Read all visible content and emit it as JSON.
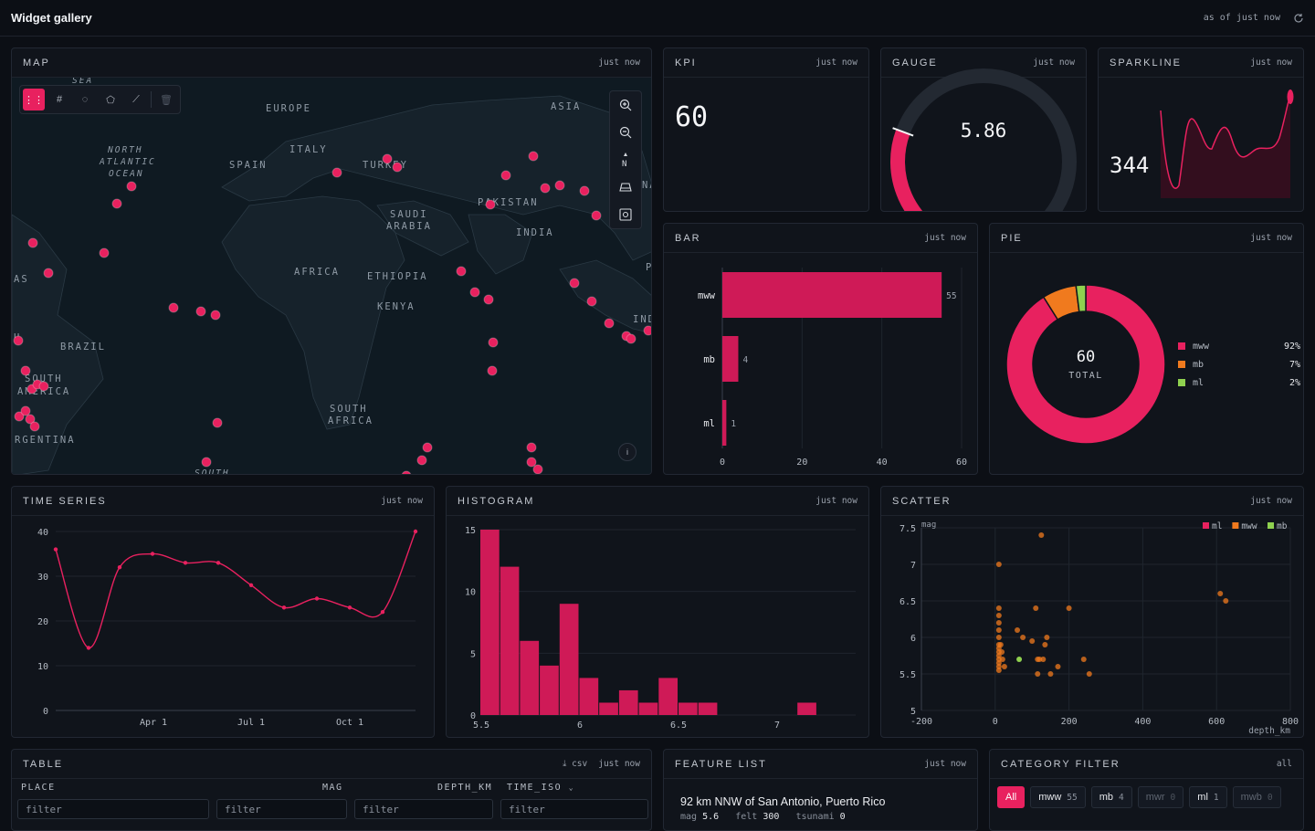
{
  "app": {
    "title": "Widget gallery",
    "status": "as of just now"
  },
  "panels": {
    "map": {
      "title": "MAP",
      "meta": "just now",
      "labels": [
        "SEA",
        "EUROPE",
        "ASIA",
        "NORTH",
        "ATLANTIC",
        "OCEAN",
        "ITALY",
        "SPAIN",
        "TURKEY",
        "SAUDI",
        "ARABIA",
        "PAKISTAN",
        "INDIA",
        "AFRICA",
        "ETHIOPIA",
        "KENYA",
        "AS",
        "BRAZIL",
        "SOUTH",
        "AMERICA",
        "SOUTH",
        "AFRICA",
        "RGENTINA",
        "SOUTH",
        "NA",
        "P",
        "IND",
        "U"
      ]
    },
    "kpi": {
      "title": "KPI",
      "meta": "just now",
      "value": "60"
    },
    "gauge": {
      "title": "GAUGE",
      "meta": "just now",
      "value": "5.86",
      "fraction": 0.28
    },
    "sparkline": {
      "title": "SPARKLINE",
      "meta": "just now",
      "value": "344"
    },
    "bar": {
      "title": "BAR",
      "meta": "just now"
    },
    "pie": {
      "title": "PIE",
      "meta": "just now",
      "center_value": "60",
      "center_label": "TOTAL"
    },
    "timeseries": {
      "title": "TIME SERIES",
      "meta": "just now"
    },
    "histogram": {
      "title": "HISTOGRAM",
      "meta": "just now"
    },
    "scatter": {
      "title": "SCATTER",
      "meta": "just now"
    },
    "table": {
      "title": "TABLE",
      "meta": "just now",
      "csv_label": "csv",
      "columns": [
        "PLACE",
        "MAG",
        "DEPTH_KM",
        "TIME_ISO"
      ],
      "filter_placeholder": "filter"
    },
    "featurelist": {
      "title": "FEATURE LIST",
      "meta": "just now",
      "item": {
        "title": "92 km NNW of San Antonio, Puerto Rico",
        "mag_label": "mag",
        "mag": "5.6",
        "felt_label": "felt",
        "felt": "300",
        "tsunami_label": "tsunami",
        "tsunami": "0"
      }
    },
    "categoryfilter": {
      "title": "CATEGORY FILTER",
      "meta": "all",
      "chips": [
        {
          "label": "All",
          "count": ""
        },
        {
          "label": "mww",
          "count": "55"
        },
        {
          "label": "mb",
          "count": "4"
        },
        {
          "label": "mwr",
          "count": "0"
        },
        {
          "label": "ml",
          "count": "1"
        },
        {
          "label": "mwb",
          "count": "0"
        }
      ]
    }
  },
  "chart_data": [
    {
      "type": "bar",
      "orientation": "horizontal",
      "categories": [
        "mww",
        "mb",
        "ml"
      ],
      "values": [
        55,
        4,
        1
      ],
      "xlim": [
        0,
        60
      ],
      "xticks": [
        "0",
        "20",
        "40",
        "60"
      ],
      "color": "#cf1a57"
    },
    {
      "type": "pie",
      "variant": "donut",
      "slices": [
        {
          "name": "mww",
          "value": 92,
          "label": "92%",
          "color": "#e8215f"
        },
        {
          "name": "mb",
          "value": 7,
          "label": "7%",
          "color": "#f07a1e"
        },
        {
          "name": "ml",
          "value": 2,
          "label": "2%",
          "color": "#8fd14f"
        }
      ]
    },
    {
      "type": "line",
      "ylim": [
        0,
        40
      ],
      "yticks": [
        "0",
        "10",
        "20",
        "30",
        "40"
      ],
      "xticks": [
        "Apr 1",
        "Jul 1",
        "Oct 1"
      ],
      "values": [
        36,
        14,
        32,
        35,
        33,
        33,
        28,
        23,
        25,
        23,
        22,
        40
      ],
      "color": "#e8215f"
    },
    {
      "type": "bar",
      "variant": "histogram",
      "xticks": [
        "5.5",
        "6",
        "6.5",
        "7"
      ],
      "yticks": [
        "0",
        "5",
        "10",
        "15"
      ],
      "ylim": [
        0,
        15
      ],
      "bins_start": 5.5,
      "bin_width": 0.05,
      "values": [
        15,
        12,
        6,
        4,
        9,
        3,
        1,
        2,
        1,
        3,
        1,
        1,
        0,
        0,
        0,
        0,
        1,
        0,
        0,
        1
      ],
      "color": "#cf1a57"
    },
    {
      "type": "scatter",
      "ylabel": "mag",
      "xlabel": "depth_km",
      "xlim": [
        -200,
        800
      ],
      "ylim": [
        5,
        7.5
      ],
      "xticks": [
        "-200",
        "0",
        "200",
        "400",
        "600",
        "800"
      ],
      "yticks": [
        "5",
        "5.5",
        "6",
        "6.5",
        "7",
        "7.5"
      ],
      "legend": [
        {
          "name": "ml",
          "color": "#e8215f"
        },
        {
          "name": "mww",
          "color": "#f07a1e"
        },
        {
          "name": "mb",
          "color": "#8fd14f"
        }
      ],
      "points": [
        [
          10,
          7.0
        ],
        [
          125,
          7.4
        ],
        [
          10,
          6.4
        ],
        [
          10,
          6.3
        ],
        [
          10,
          6.2
        ],
        [
          10,
          6.1
        ],
        [
          10,
          6.0
        ],
        [
          10,
          5.9
        ],
        [
          10,
          5.85
        ],
        [
          10,
          5.8
        ],
        [
          10,
          5.75
        ],
        [
          10,
          5.7
        ],
        [
          10,
          5.65
        ],
        [
          10,
          5.6
        ],
        [
          10,
          5.55
        ],
        [
          15,
          5.9
        ],
        [
          18,
          5.8
        ],
        [
          20,
          5.7
        ],
        [
          25,
          5.6
        ],
        [
          110,
          6.4
        ],
        [
          200,
          6.4
        ],
        [
          60,
          6.1
        ],
        [
          75,
          6.0
        ],
        [
          100,
          5.95
        ],
        [
          140,
          6.0
        ],
        [
          135,
          5.9
        ],
        [
          115,
          5.7
        ],
        [
          120,
          5.7
        ],
        [
          130,
          5.7
        ],
        [
          170,
          5.6
        ],
        [
          115,
          5.5
        ],
        [
          150,
          5.5
        ],
        [
          240,
          5.7
        ],
        [
          255,
          5.5
        ],
        [
          610,
          6.6
        ],
        [
          625,
          6.5
        ]
      ],
      "mb_points": [
        [
          65,
          5.7
        ]
      ]
    }
  ]
}
